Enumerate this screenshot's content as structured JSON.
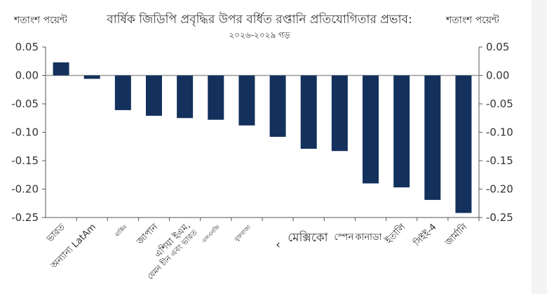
{
  "chart_data": {
    "type": "bar",
    "title": "বার্ষিক জিডিপি প্রবৃদ্ধির উপর বর্ধিত রপ্তানি প্রতিযোগিতার প্রভাব:",
    "subtitle": "২০২৬-২০২৯ গড়",
    "ylabel_left": "শতাংশ পয়েন্ট",
    "ylabel_right": "শতাংশ পয়েন্ট",
    "ylim": [
      -0.25,
      0.05
    ],
    "yticks": [
      "0.05",
      "0.00",
      "-0.05",
      "-0.10",
      "-0.15",
      "-0.20",
      "-0.25"
    ],
    "yticks_values": [
      0.05,
      0,
      -0.05,
      -0.1,
      -0.15,
      -0.2,
      -0.25
    ],
    "categories": [
      "ভারত",
      "অন্যান্য LatAm",
      "মার্কিন",
      "জাপান",
      "এশিয়া ইএম, যেমন চীন এবং ভারত",
      "এলএনজি",
      "যুক্তরাজ্য",
      "‹",
      "মেক্সিকো",
      "স্পেন",
      "কানাডা",
      "ইতালি",
      "সিইই-4",
      "জার্মানি"
    ],
    "values": [
      0.023,
      -0.006,
      -0.061,
      -0.071,
      -0.075,
      -0.078,
      -0.088,
      -0.108,
      -0.129,
      -0.133,
      -0.19,
      -0.197,
      -0.219,
      -0.242
    ],
    "bar_color": "#13315c",
    "grid": false,
    "legend": "none"
  }
}
